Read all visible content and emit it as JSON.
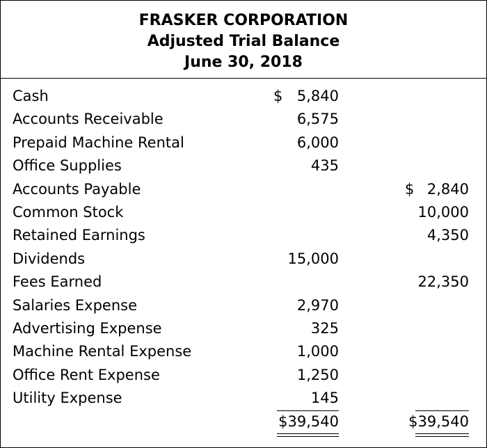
{
  "header": {
    "company": "FRASKER CORPORATION",
    "statement": "Adjusted Trial Balance",
    "date": "June 30, 2018"
  },
  "currency_symbol": "$",
  "accounts": [
    {
      "name": "Cash",
      "debit": "5,840",
      "credit": ""
    },
    {
      "name": "Accounts Receivable",
      "debit": "6,575",
      "credit": ""
    },
    {
      "name": "Prepaid Machine Rental",
      "debit": "6,000",
      "credit": ""
    },
    {
      "name": "Office Supplies",
      "debit": "435",
      "credit": ""
    },
    {
      "name": "Accounts Payable",
      "debit": "",
      "credit": "2,840"
    },
    {
      "name": "Common Stock",
      "debit": "",
      "credit": "10,000"
    },
    {
      "name": "Retained Earnings",
      "debit": "",
      "credit": "4,350"
    },
    {
      "name": "Dividends",
      "debit": "15,000",
      "credit": ""
    },
    {
      "name": "Fees Earned",
      "debit": "",
      "credit": "22,350"
    },
    {
      "name": "Salaries Expense",
      "debit": "2,970",
      "credit": ""
    },
    {
      "name": "Advertising Expense",
      "debit": "325",
      "credit": ""
    },
    {
      "name": "Machine Rental Expense",
      "debit": "1,000",
      "credit": ""
    },
    {
      "name": "Office Rent Expense",
      "debit": "1,250",
      "credit": ""
    },
    {
      "name": "Utility Expense",
      "debit": "145",
      "credit": ""
    }
  ],
  "totals": {
    "debit": "$39,540",
    "credit": "$39,540"
  }
}
